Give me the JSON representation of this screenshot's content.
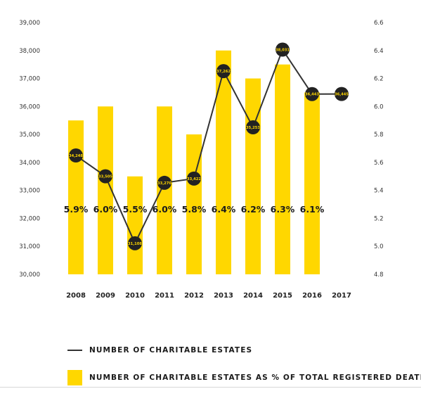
{
  "colors": {
    "bar": "#ffd700",
    "line": "#333333",
    "marker": "#222222",
    "marker_text": "#ffd700"
  },
  "legend": {
    "line_label": "NUMBER OF CHARITABLE ESTATES",
    "bar_label": "NUMBER OF CHARITABLE ESTATES AS % OF TOTAL REGISTERED DEATHS"
  },
  "chart_data": {
    "type": "bar",
    "categories": [
      "2008",
      "2009",
      "2010",
      "2011",
      "2012",
      "2013",
      "2014",
      "2015",
      "2016",
      "2017"
    ],
    "series": [
      {
        "type": "bar",
        "axis": "right",
        "values": [
          5.9,
          6.0,
          5.5,
          6.0,
          5.8,
          6.4,
          6.2,
          6.3,
          6.1,
          null
        ],
        "labels": [
          "5.9%",
          "6.0%",
          "5.5%",
          "6.0%",
          "5.8%",
          "6.4%",
          "6.2%",
          "6.3%",
          "6.1%",
          ""
        ]
      },
      {
        "type": "line",
        "axis": "left",
        "values": [
          34248,
          33505,
          31108,
          33270,
          33422,
          37262,
          35253,
          38031,
          36443,
          36445
        ],
        "labels": [
          "34,248",
          "33,505",
          "31,108",
          "33,270",
          "33,422",
          "37,262",
          "35,253",
          "38,031",
          "36,443",
          "36,445"
        ]
      }
    ],
    "y_left": {
      "range": [
        30000,
        39000
      ],
      "ticks": [
        "30,000",
        "31,000",
        "32,000",
        "33,000",
        "34,000",
        "35,000",
        "36,000",
        "37,000",
        "38,000",
        "39,000"
      ]
    },
    "y_right": {
      "range": [
        4.8,
        6.6
      ],
      "ticks": [
        "4.8",
        "5.0",
        "5.2",
        "5.4",
        "5.6",
        "5.8",
        "6.0",
        "6.2",
        "6.4",
        "6.6"
      ]
    },
    "grid": false,
    "legend_position": "bottom-left"
  }
}
